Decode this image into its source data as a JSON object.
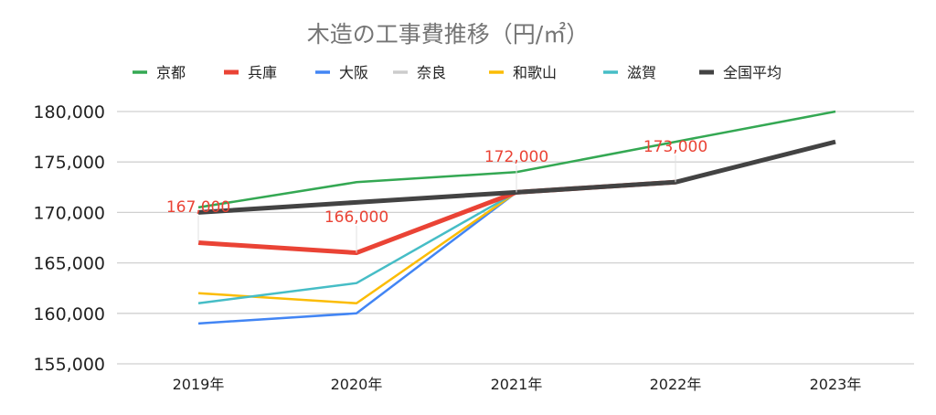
{
  "chart_data": {
    "type": "line",
    "title": "木造の工事費推移（円/㎡）",
    "xlabel": "",
    "ylabel": "",
    "categories": [
      "2019年",
      "2020年",
      "2021年",
      "2022年",
      "2023年"
    ],
    "ylim": [
      155000,
      180000
    ],
    "yticks": [
      155000,
      160000,
      165000,
      170000,
      175000,
      180000
    ],
    "ytick_labels": [
      "155,000",
      "160,000",
      "165,000",
      "170,000",
      "175,000",
      "180,000"
    ],
    "grid": true,
    "legend_position": "top",
    "series": [
      {
        "name": "京都",
        "color": "#34a853",
        "width": 2.5,
        "values": [
          170500,
          173000,
          174000,
          177000,
          180000
        ]
      },
      {
        "name": "兵庫",
        "color": "#ea4335",
        "width": 5,
        "values": [
          167000,
          166000,
          172000,
          173000,
          null
        ],
        "data_labels": [
          "167,000",
          "166,000",
          "172,000",
          "173,000",
          null
        ]
      },
      {
        "name": "大阪",
        "color": "#4285f4",
        "width": 2.5,
        "values": [
          159000,
          160000,
          172000,
          null,
          null
        ]
      },
      {
        "name": "奈良",
        "color": "#cccccc",
        "width": 2.5,
        "values": [
          null,
          null,
          172000,
          null,
          null
        ]
      },
      {
        "name": "和歌山",
        "color": "#fbbc04",
        "width": 2.5,
        "values": [
          162000,
          161000,
          172000,
          null,
          null
        ]
      },
      {
        "name": "滋賀",
        "color": "#46bdc6",
        "width": 2.5,
        "values": [
          161000,
          163000,
          172000,
          null,
          null
        ]
      },
      {
        "name": "全国平均",
        "color": "#434343",
        "width": 5,
        "values": [
          170000,
          171000,
          172000,
          173000,
          177000
        ]
      }
    ]
  }
}
